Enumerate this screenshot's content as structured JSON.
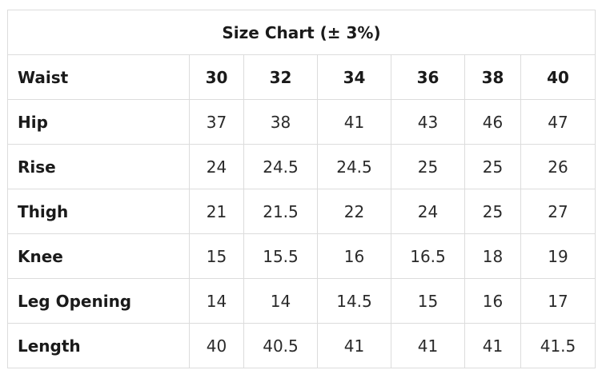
{
  "title": "Size Chart (± 3%)",
  "header": {
    "label": "Waist",
    "values": [
      "30",
      "32",
      "34",
      "36",
      "38",
      "40"
    ]
  },
  "rows": [
    {
      "label": "Hip",
      "values": [
        "37",
        "38",
        "41",
        "43",
        "46",
        "47"
      ]
    },
    {
      "label": "Rise",
      "values": [
        "24",
        "24.5",
        "24.5",
        "25",
        "25",
        "26"
      ]
    },
    {
      "label": "Thigh",
      "values": [
        "21",
        "21.5",
        "22",
        "24",
        "25",
        "27"
      ]
    },
    {
      "label": "Knee",
      "values": [
        "15",
        "15.5",
        "16",
        "16.5",
        "18",
        "19"
      ]
    },
    {
      "label": "Leg Opening",
      "values": [
        "14",
        "14",
        "14.5",
        "15",
        "16",
        "17"
      ]
    },
    {
      "label": "Length",
      "values": [
        "40",
        "40.5",
        "41",
        "41",
        "41",
        "41.5"
      ]
    }
  ]
}
